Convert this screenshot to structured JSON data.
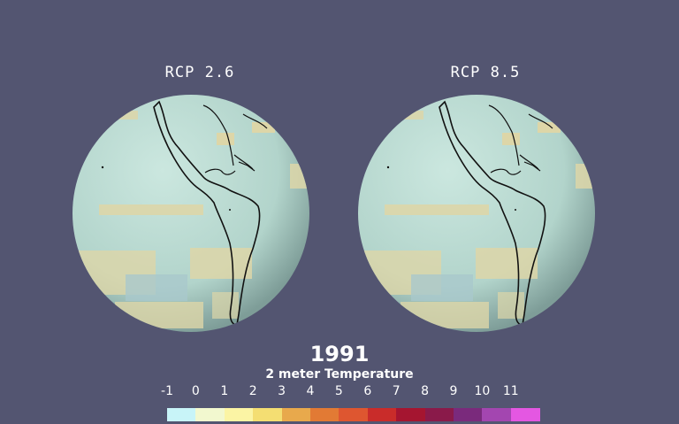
{
  "year": "1991",
  "colorbar": {
    "title": "2 meter Temperature",
    "ticks": [
      "-1",
      "0",
      "1",
      "2",
      "3",
      "4",
      "5",
      "6",
      "7",
      "8",
      "9",
      "10",
      "11"
    ],
    "colors": [
      "#c8f4f8",
      "#f2f8cf",
      "#fbf4a4",
      "#f4de72",
      "#e8a94c",
      "#e27a34",
      "#de5630",
      "#c92c2a",
      "#a51530",
      "#8a1a4a",
      "#7a2a7c",
      "#a346b0",
      "#e457e2"
    ]
  },
  "globes": [
    {
      "title": "RCP 2.6"
    },
    {
      "title": "RCP 8.5"
    }
  ],
  "colors": {
    "background": "#535571",
    "ocean": "#b4d6cc",
    "warm_patch": "#ddd6a8",
    "cool_patch": "#a9c8cc",
    "coastline": "#111111"
  }
}
